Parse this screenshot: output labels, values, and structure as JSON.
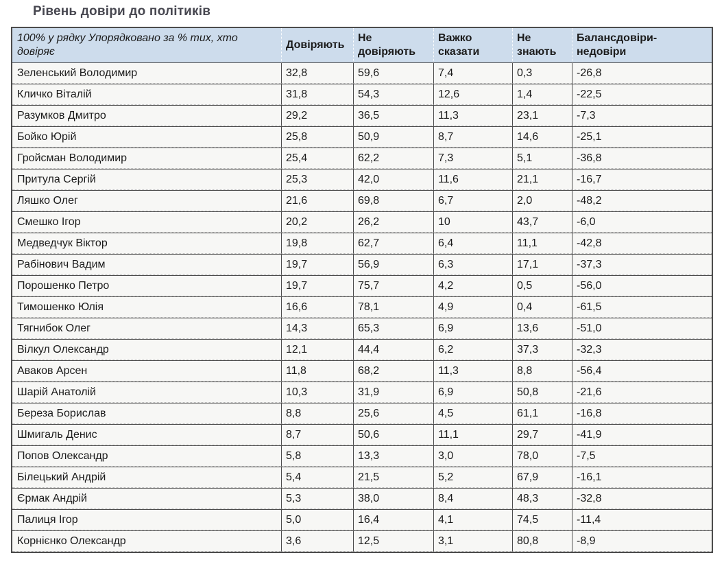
{
  "title": "Рівень довіри до політиків",
  "chart_data": {
    "type": "table",
    "title": "Рівень довіри до політиків",
    "corner_header": "100% у рядку Упорядковано за % тих, хто довіряє",
    "columns": [
      "Довіряють",
      "Не довіряють",
      "Важко сказати",
      "Не знають",
      "Балансдовіри-недовіри"
    ],
    "rows": [
      {
        "name": "Зеленський Володимир",
        "values": [
          "32,8",
          "59,6",
          "7,4",
          "0,3",
          "-26,8"
        ]
      },
      {
        "name": "Кличко Віталій",
        "values": [
          "31,8",
          "54,3",
          "12,6",
          "1,4",
          "-22,5"
        ]
      },
      {
        "name": "Разумков Дмитро",
        "values": [
          "29,2",
          "36,5",
          "11,3",
          "23,1",
          "-7,3"
        ]
      },
      {
        "name": "Бойко Юрій",
        "values": [
          "25,8",
          "50,9",
          "8,7",
          "14,6",
          "-25,1"
        ]
      },
      {
        "name": "Гройсман Володимир",
        "values": [
          "25,4",
          "62,2",
          "7,3",
          "5,1",
          "-36,8"
        ]
      },
      {
        "name": "Притула Сергій",
        "values": [
          "25,3",
          "42,0",
          "11,6",
          "21,1",
          "-16,7"
        ]
      },
      {
        "name": "Ляшко Олег",
        "values": [
          "21,6",
          "69,8",
          "6,7",
          "2,0",
          "-48,2"
        ]
      },
      {
        "name": "Смешко Ігор",
        "values": [
          "20,2",
          "26,2",
          "10",
          "43,7",
          "-6,0"
        ]
      },
      {
        "name": "Медведчук Віктор",
        "values": [
          "19,8",
          "62,7",
          "6,4",
          "11,1",
          "-42,8"
        ]
      },
      {
        "name": "Рабінович Вадим",
        "values": [
          "19,7",
          "56,9",
          "6,3",
          "17,1",
          "-37,3"
        ]
      },
      {
        "name": "Порошенко Петро",
        "values": [
          "19,7",
          "75,7",
          "4,2",
          "0,5",
          "-56,0"
        ]
      },
      {
        "name": "Тимошенко Юлія",
        "values": [
          "16,6",
          "78,1",
          "4,9",
          "0,4",
          "-61,5"
        ]
      },
      {
        "name": "Тягнибок Олег",
        "values": [
          "14,3",
          "65,3",
          "6,9",
          "13,6",
          "-51,0"
        ]
      },
      {
        "name": "Вілкул Олександр",
        "values": [
          "12,1",
          "44,4",
          "6,2",
          "37,3",
          "-32,3"
        ]
      },
      {
        "name": "Аваков Арсен",
        "values": [
          "11,8",
          "68,2",
          "11,3",
          "8,8",
          "-56,4"
        ]
      },
      {
        "name": "Шарій Анатолій",
        "values": [
          "10,3",
          "31,9",
          "6,9",
          "50,8",
          "-21,6"
        ]
      },
      {
        "name": "Береза Борислав",
        "values": [
          "8,8",
          "25,6",
          "4,5",
          "61,1",
          "-16,8"
        ]
      },
      {
        "name": "Шмигаль Денис",
        "values": [
          "8,7",
          "50,6",
          "11,1",
          "29,7",
          "-41,9"
        ]
      },
      {
        "name": "Попов Олександр",
        "values": [
          "5,8",
          "13,3",
          "3,0",
          "78,0",
          "-7,5"
        ]
      },
      {
        "name": "Білецький Андрій",
        "values": [
          "5,4",
          "21,5",
          "5,2",
          "67,9",
          "-16,1"
        ]
      },
      {
        "name": "Єрмак Андрій",
        "values": [
          "5,3",
          "38,0",
          "8,4",
          "48,3",
          "-32,8"
        ]
      },
      {
        "name": "Палиця Ігор",
        "values": [
          "5,0",
          "16,4",
          "4,1",
          "74,5",
          "-11,4"
        ]
      },
      {
        "name": "Корнієнко Олександр",
        "values": [
          "3,6",
          "12,5",
          "3,1",
          "80,8",
          "-8,9"
        ]
      }
    ]
  },
  "colors": {
    "header_bg": "#cddcec",
    "cell_bg": "#f7f7f5",
    "border_dark": "#4c4c4c",
    "title_text": "#474750",
    "text": "#1b1b1b"
  }
}
